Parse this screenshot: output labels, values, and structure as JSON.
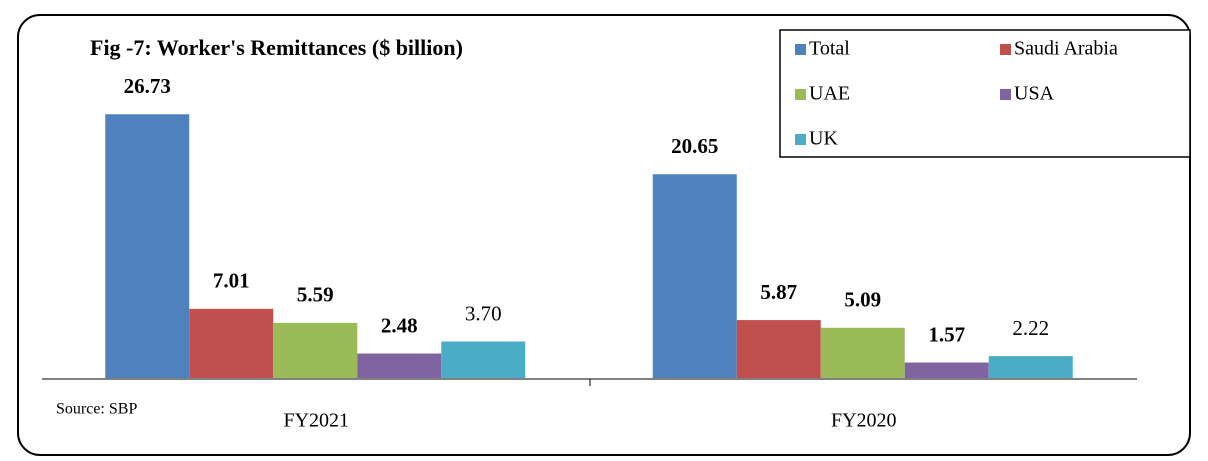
{
  "chart_data": {
    "type": "bar",
    "title": "Fig -7: Worker's Remittances ($ billion)",
    "categories": [
      "FY2021",
      "FY2020"
    ],
    "series": [
      {
        "name": "Total",
        "color": "#4f81bd",
        "values": [
          26.73,
          20.65
        ]
      },
      {
        "name": "Saudi Arabia",
        "color": "#c0504d",
        "values": [
          7.01,
          5.87
        ]
      },
      {
        "name": "UAE",
        "color": "#9bbb59",
        "values": [
          5.59,
          5.09
        ]
      },
      {
        "name": "USA",
        "color": "#8064a2",
        "values": [
          2.48,
          1.57
        ]
      },
      {
        "name": "UK",
        "color": "#4bacc6",
        "values": [
          3.7,
          2.22
        ],
        "value_labels": [
          "3.70",
          "2.22"
        ]
      }
    ],
    "ylim": [
      0,
      30
    ],
    "annotations": [
      "Source: SBP"
    ],
    "legend": "top-right"
  }
}
